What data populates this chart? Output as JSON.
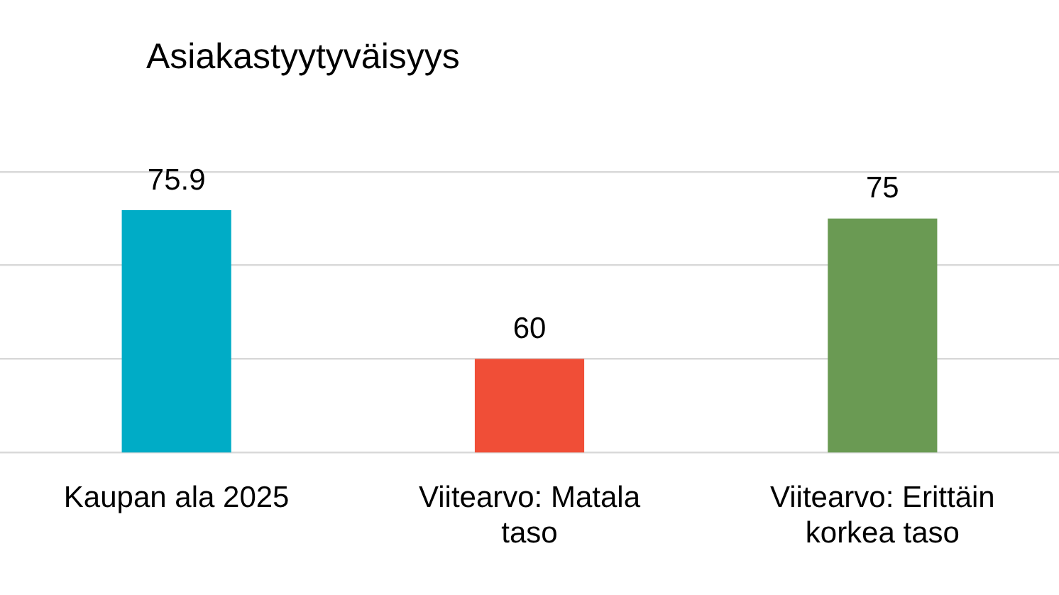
{
  "chart_data": {
    "type": "bar",
    "title": "Asiakastyytyväisyys",
    "categories": [
      "Kaupan ala 2025",
      "Viitearvo: Matala taso",
      "Viitearvo: Erittäin korkea taso"
    ],
    "values": [
      75.9,
      60,
      75
    ],
    "colors": [
      "#00acc6",
      "#f04e37",
      "#6a9a53"
    ],
    "ylim": [
      50,
      80
    ],
    "yticks": [
      {
        "value": 50,
        "label": null
      },
      {
        "value": 60,
        "label": null
      },
      {
        "value": 70,
        "label": null
      },
      {
        "value": 80,
        "label": null
      }
    ],
    "tick_labels": "x",
    "grid": "y",
    "data_labels": true,
    "legend": false
  }
}
